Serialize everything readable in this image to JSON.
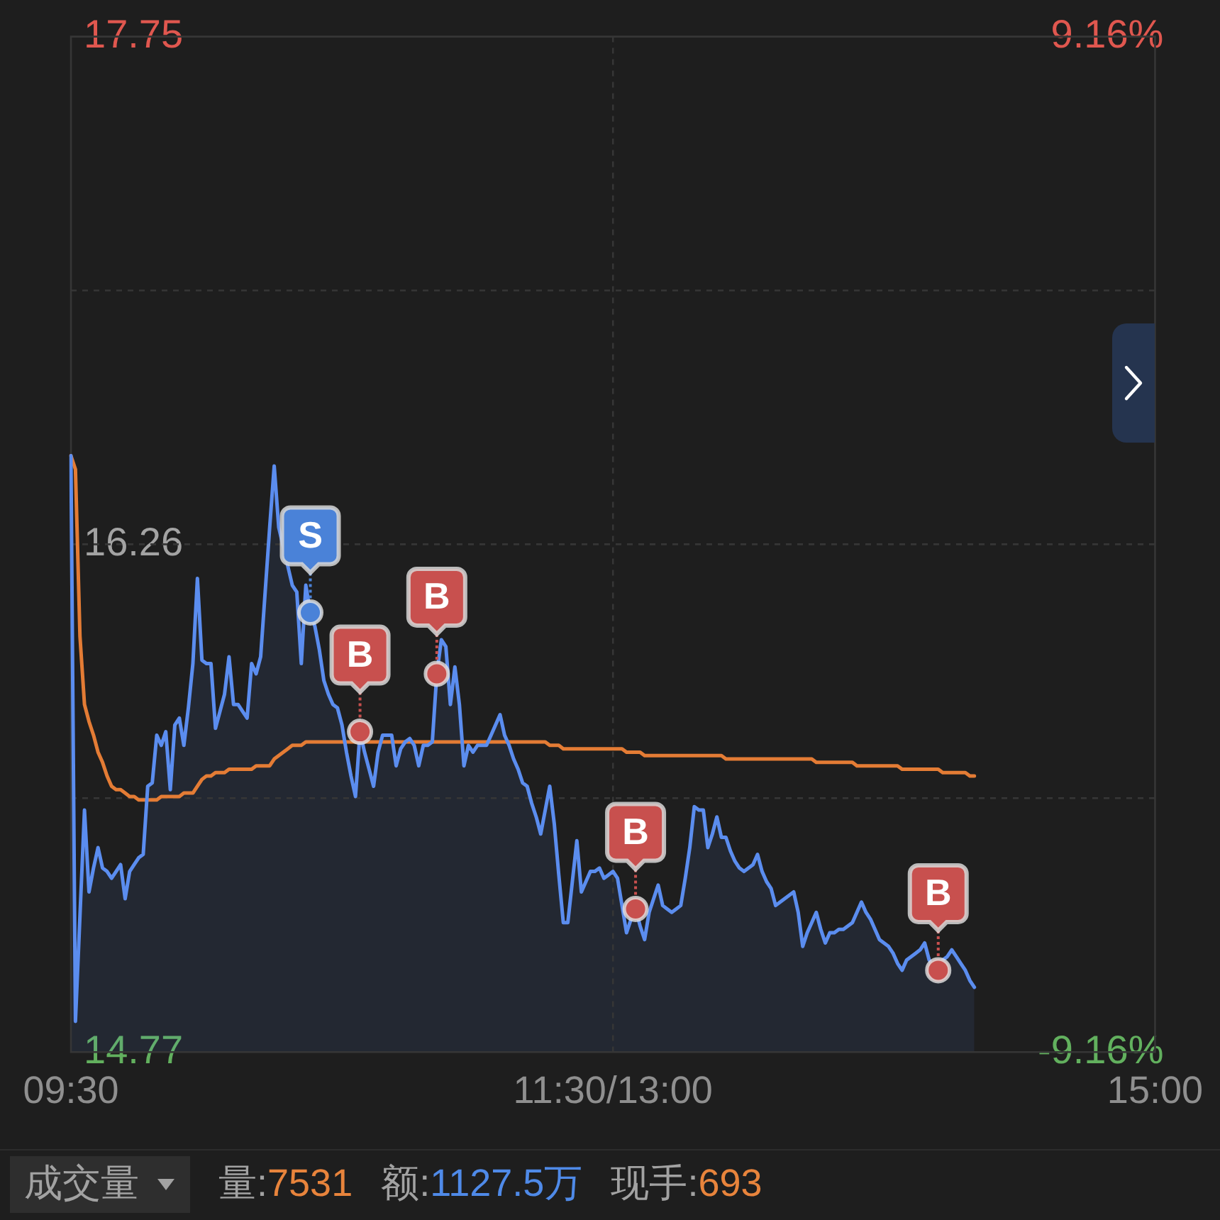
{
  "chart_data": {
    "type": "area",
    "marker": "none",
    "line_style": "solid",
    "grid": true,
    "categories": [
      "09:30",
      null,
      null,
      null,
      null,
      null,
      null,
      null,
      null,
      null,
      null,
      null,
      null,
      null,
      null,
      null,
      null,
      null,
      null,
      null,
      null,
      null,
      null,
      null,
      null,
      null,
      null,
      null,
      null,
      null,
      null,
      null,
      null,
      null,
      null,
      null,
      null,
      null,
      null,
      null,
      null,
      null,
      null,
      null,
      null,
      null,
      null,
      null,
      null,
      null,
      null,
      null,
      null,
      null,
      null,
      null,
      null,
      null,
      null,
      null,
      null,
      null,
      null,
      null,
      null,
      null,
      null,
      null,
      null,
      null,
      null,
      null,
      null,
      null,
      null,
      null,
      null,
      null,
      null,
      null,
      null,
      null,
      null,
      null,
      null,
      null,
      null,
      null,
      null,
      null,
      null,
      null,
      null,
      null,
      null,
      null,
      null,
      null,
      null,
      null,
      null,
      null,
      null,
      null,
      null,
      null,
      null,
      null,
      null,
      null,
      null,
      null,
      null,
      null,
      null,
      null,
      null,
      null,
      null,
      null,
      "11:30/13:00",
      null,
      null,
      null,
      null,
      null,
      null,
      null,
      null,
      null,
      null,
      null,
      null,
      null,
      null,
      null,
      null,
      null,
      null,
      null,
      null,
      null,
      null,
      null,
      null,
      null,
      null,
      null,
      null,
      null,
      null,
      null,
      null,
      null,
      null,
      null,
      null,
      null,
      null,
      null,
      null,
      null,
      null,
      null,
      null,
      null,
      null,
      null,
      null,
      null,
      null,
      null,
      null,
      null,
      null,
      null,
      null,
      null,
      null,
      null,
      null,
      null,
      null,
      null,
      null,
      null,
      null,
      null,
      null,
      null,
      null,
      null,
      null,
      null,
      null,
      null,
      null,
      null,
      null,
      null,
      null,
      null,
      null,
      null,
      null,
      null,
      null,
      null,
      null,
      null,
      null,
      null,
      null,
      null,
      null,
      null,
      null,
      null,
      null,
      null,
      null,
      null,
      null,
      null,
      null,
      null,
      null,
      null,
      null,
      null,
      null,
      null,
      null,
      null,
      null,
      null,
      null,
      null,
      null,
      null,
      "15:00"
    ],
    "ylim": [
      14.77,
      17.75
    ],
    "yticks": [
      14.77,
      {
        "value": 15.515,
        "label": null
      },
      16.26,
      {
        "value": 17.005,
        "label": null
      },
      17.75
    ],
    "y2lim": [
      -9.16,
      9.16
    ],
    "y2ticks": [
      {
        "value": -9.16,
        "label": "-9.16%"
      },
      {
        "value": 9.16,
        "label": "9.16%"
      }
    ],
    "annotations": [
      "成交量",
      "量:7531",
      "额:1127.5万",
      "现手:693"
    ],
    "series": [
      {
        "color": "#5b8def",
        "values": [
          16.52,
          14.86,
          15.17,
          15.48,
          15.24,
          15.31,
          15.37,
          15.31,
          15.3,
          15.28,
          15.3,
          15.32,
          15.22,
          15.3,
          15.32,
          15.34,
          15.35,
          15.55,
          15.56,
          15.7,
          15.67,
          15.71,
          15.54,
          15.73,
          15.75,
          15.67,
          15.78,
          15.91,
          16.16,
          15.92,
          15.91,
          15.91,
          15.72,
          15.77,
          15.82,
          15.93,
          15.79,
          15.79,
          15.77,
          15.75,
          15.91,
          15.88,
          15.93,
          16.12,
          16.31,
          16.49,
          16.31,
          null,
          null,
          16.14,
          16.12,
          15.91,
          16.14,
          16.06,
          16.02,
          15.95,
          15.86,
          15.82,
          15.79,
          15.78,
          15.73,
          15.65,
          15.58,
          15.52,
          15.71,
          15.65,
          15.6,
          15.55,
          15.65,
          15.7,
          15.7,
          15.7,
          15.61,
          15.66,
          15.68,
          15.69,
          15.67,
          15.61,
          15.67,
          15.67,
          15.68,
          15.88,
          15.98,
          15.96,
          15.79,
          15.9,
          15.79,
          15.61,
          15.67,
          15.65,
          15.67,
          15.67,
          15.67,
          15.7,
          15.73,
          15.76,
          15.7,
          15.67,
          15.63,
          15.6,
          15.56,
          15.55,
          15.5,
          15.46,
          15.41,
          15.48,
          15.55,
          15.44,
          15.29,
          15.15,
          15.15,
          15.27,
          15.39,
          15.24,
          15.27,
          15.3,
          15.3,
          15.31,
          15.28,
          15.29,
          15.3,
          15.28,
          15.2,
          15.12,
          15.16,
          15.19,
          15.14,
          15.1,
          15.18,
          15.22,
          15.26,
          15.2,
          15.19,
          15.18,
          15.19,
          15.2,
          15.28,
          15.37,
          15.49,
          15.48,
          15.48,
          15.37,
          15.41,
          15.46,
          15.4,
          15.4,
          15.36,
          15.33,
          15.31,
          15.3,
          15.31,
          15.32,
          15.35,
          15.3,
          15.27,
          15.25,
          15.2,
          15.21,
          15.22,
          15.23,
          15.24,
          15.18,
          15.08,
          15.12,
          15.15,
          15.18,
          15.13,
          15.09,
          15.12,
          15.12,
          15.13,
          15.13,
          15.14,
          15.15,
          15.18,
          15.21,
          15.18,
          15.16,
          15.13,
          15.1,
          15.09,
          15.08,
          15.06,
          15.03,
          15.01,
          15.04,
          15.05,
          15.06,
          15.07,
          15.09,
          15.04,
          15.02,
          15.01,
          15.04,
          15.05,
          15.07,
          15.05,
          15.03,
          15.01,
          14.98,
          14.96,
          null,
          null,
          null,
          null,
          null,
          null,
          null,
          null,
          null,
          null,
          null,
          null,
          null,
          null,
          null,
          null,
          null,
          null,
          null,
          null,
          null,
          null,
          null,
          null,
          null,
          null,
          null,
          null,
          null,
          null,
          null,
          null,
          null,
          null,
          null,
          null,
          null,
          null,
          null,
          null
        ]
      },
      {
        "type": "line",
        "color": "#e47c35",
        "values": [
          16.52,
          16.48,
          15.99,
          15.79,
          15.74,
          15.7,
          15.65,
          15.62,
          15.58,
          15.55,
          15.54,
          15.54,
          15.53,
          15.52,
          15.52,
          15.51,
          15.51,
          15.51,
          15.51,
          15.51,
          15.52,
          15.52,
          15.52,
          15.52,
          15.52,
          15.53,
          15.53,
          15.53,
          15.55,
          15.57,
          15.58,
          15.58,
          15.59,
          15.59,
          15.59,
          15.6,
          15.6,
          15.6,
          15.6,
          15.6,
          15.6,
          15.61,
          15.61,
          15.61,
          15.61,
          15.63,
          15.64,
          15.65,
          15.66,
          15.67,
          15.67,
          15.67,
          15.68,
          15.68,
          15.68,
          15.68,
          15.68,
          15.68,
          15.68,
          15.68,
          15.68,
          15.68,
          15.68,
          15.68,
          15.68,
          15.68,
          15.68,
          15.68,
          15.68,
          15.68,
          15.68,
          15.68,
          15.68,
          15.68,
          15.68,
          15.68,
          15.68,
          15.68,
          15.68,
          15.68,
          15.68,
          15.68,
          15.68,
          15.68,
          15.68,
          15.68,
          15.68,
          15.68,
          15.68,
          15.68,
          15.68,
          15.68,
          15.68,
          15.68,
          15.68,
          15.68,
          15.68,
          15.68,
          15.68,
          15.68,
          15.68,
          15.68,
          15.68,
          15.68,
          15.68,
          15.68,
          15.67,
          15.67,
          15.67,
          15.66,
          15.66,
          15.66,
          15.66,
          15.66,
          15.66,
          15.66,
          15.66,
          15.66,
          15.66,
          15.66,
          15.66,
          15.66,
          15.66,
          15.65,
          15.65,
          15.65,
          15.65,
          15.64,
          15.64,
          15.64,
          15.64,
          15.64,
          15.64,
          15.64,
          15.64,
          15.64,
          15.64,
          15.64,
          15.64,
          15.64,
          15.64,
          15.64,
          15.64,
          15.64,
          15.64,
          15.63,
          15.63,
          15.63,
          15.63,
          15.63,
          15.63,
          15.63,
          15.63,
          15.63,
          15.63,
          15.63,
          15.63,
          15.63,
          15.63,
          15.63,
          15.63,
          15.63,
          15.63,
          15.63,
          15.63,
          15.62,
          15.62,
          15.62,
          15.62,
          15.62,
          15.62,
          15.62,
          15.62,
          15.62,
          15.61,
          15.61,
          15.61,
          15.61,
          15.61,
          15.61,
          15.61,
          15.61,
          15.61,
          15.61,
          15.6,
          15.6,
          15.6,
          15.6,
          15.6,
          15.6,
          15.6,
          15.6,
          15.6,
          15.59,
          15.59,
          15.59,
          15.59,
          15.59,
          15.59,
          15.58,
          15.58,
          null,
          null,
          null,
          null,
          null,
          null,
          null,
          null,
          null,
          null,
          null,
          null,
          null,
          null,
          null,
          null,
          null,
          null,
          null,
          null,
          null,
          null,
          null,
          null,
          null,
          null,
          null,
          null,
          null,
          null,
          null,
          null,
          null,
          null,
          null,
          null,
          null,
          null,
          null,
          null
        ]
      },
      {
        "type": "scatter",
        "marker": "circle",
        "color": "#4a82d8",
        "values": [
          null,
          null,
          null,
          null,
          null,
          null,
          null,
          null,
          null,
          null,
          null,
          null,
          null,
          null,
          null,
          null,
          null,
          null,
          null,
          null,
          null,
          null,
          null,
          null,
          null,
          null,
          null,
          null,
          null,
          null,
          null,
          null,
          null,
          null,
          null,
          null,
          null,
          null,
          null,
          null,
          null,
          null,
          null,
          null,
          null,
          null,
          null,
          null,
          null,
          null,
          null,
          null,
          null,
          16.06,
          null,
          null,
          null,
          null,
          null,
          null,
          null,
          null,
          null,
          null,
          null,
          null,
          null,
          null,
          null,
          null,
          null,
          null,
          null,
          null,
          null,
          null,
          null,
          null,
          null,
          null,
          null,
          null,
          null,
          null,
          null,
          null,
          null,
          null,
          null,
          null,
          null,
          null,
          null,
          null,
          null,
          null,
          null,
          null,
          null,
          null,
          null,
          null,
          null,
          null,
          null,
          null,
          null,
          null,
          null,
          null,
          null,
          null,
          null,
          null,
          null,
          null,
          null,
          null,
          null,
          null,
          null,
          null,
          null,
          null,
          null,
          null,
          null,
          null,
          null,
          null,
          null,
          null,
          null,
          null,
          null,
          null,
          null,
          null,
          null,
          null,
          null,
          null,
          null,
          null,
          null,
          null,
          null,
          null,
          null,
          null,
          null,
          null,
          null,
          null,
          null,
          null,
          null,
          null,
          null,
          null,
          null,
          null,
          null,
          null,
          null,
          null,
          null,
          null,
          null,
          null,
          null,
          null,
          null,
          null,
          null,
          null,
          null,
          null,
          null,
          null,
          null,
          null,
          null,
          null,
          null,
          null,
          null,
          null,
          null,
          null,
          null,
          null,
          null,
          null,
          null,
          null,
          null,
          null,
          null,
          null,
          null,
          null,
          null,
          null,
          null,
          null,
          null,
          null,
          null,
          null,
          null,
          null,
          null,
          null,
          null,
          null,
          null,
          null,
          null,
          null,
          null,
          null,
          null,
          null,
          null,
          null,
          null,
          null,
          null,
          null,
          null,
          null,
          null,
          null,
          null,
          null,
          null,
          null,
          null,
          null,
          null
        ],
        "value_labels": [
          null,
          null,
          null,
          null,
          null,
          null,
          null,
          null,
          null,
          null,
          null,
          null,
          null,
          null,
          null,
          null,
          null,
          null,
          null,
          null,
          null,
          null,
          null,
          null,
          null,
          null,
          null,
          null,
          null,
          null,
          null,
          null,
          null,
          null,
          null,
          null,
          null,
          null,
          null,
          null,
          null,
          null,
          null,
          null,
          null,
          null,
          null,
          null,
          null,
          null,
          null,
          null,
          null,
          "S",
          null,
          null,
          null,
          null,
          null,
          null,
          null,
          null,
          null,
          null,
          null,
          null,
          null,
          null,
          null,
          null,
          null,
          null,
          null,
          null,
          null,
          null,
          null,
          null,
          null,
          null,
          null,
          null,
          null,
          null,
          null,
          null,
          null,
          null,
          null,
          null,
          null,
          null,
          null,
          null,
          null,
          null,
          null,
          null,
          null,
          null,
          null,
          null,
          null,
          null,
          null,
          null,
          null,
          null,
          null,
          null,
          null,
          null,
          null,
          null,
          null,
          null,
          null,
          null,
          null,
          null,
          null,
          null,
          null,
          null,
          null,
          null,
          null,
          null,
          null,
          null,
          null,
          null,
          null,
          null,
          null,
          null,
          null,
          null,
          null,
          null,
          null,
          null,
          null,
          null,
          null,
          null,
          null,
          null,
          null,
          null,
          null,
          null,
          null,
          null,
          null,
          null,
          null,
          null,
          null,
          null,
          null,
          null,
          null,
          null,
          null,
          null,
          null,
          null,
          null,
          null,
          null,
          null,
          null,
          null,
          null,
          null,
          null,
          null,
          null,
          null,
          null,
          null,
          null,
          null,
          null,
          null,
          null,
          null,
          null,
          null,
          null,
          null,
          null,
          null,
          null,
          null,
          null,
          null,
          null,
          null,
          null,
          null,
          null,
          null,
          null,
          null,
          null,
          null,
          null,
          null,
          null,
          null,
          null,
          null,
          null,
          null,
          null,
          null,
          null,
          null,
          null,
          null,
          null,
          null,
          null,
          null,
          null,
          null,
          null,
          null,
          null,
          null,
          null,
          null,
          null,
          null,
          null,
          null,
          null,
          null,
          null
        ]
      },
      {
        "type": "scatter",
        "marker": "circle",
        "color": "#c8504e",
        "values": [
          null,
          null,
          null,
          null,
          null,
          null,
          null,
          null,
          null,
          null,
          null,
          null,
          null,
          null,
          null,
          null,
          null,
          null,
          null,
          null,
          null,
          null,
          null,
          null,
          null,
          null,
          null,
          null,
          null,
          null,
          null,
          null,
          null,
          null,
          null,
          null,
          null,
          null,
          null,
          null,
          null,
          null,
          null,
          null,
          null,
          null,
          null,
          null,
          null,
          null,
          null,
          null,
          null,
          null,
          null,
          null,
          null,
          null,
          null,
          null,
          null,
          null,
          null,
          null,
          15.71,
          null,
          null,
          null,
          null,
          null,
          null,
          null,
          null,
          null,
          null,
          null,
          null,
          null,
          null,
          null,
          null,
          15.88,
          null,
          null,
          null,
          null,
          null,
          null,
          null,
          null,
          null,
          null,
          null,
          null,
          null,
          null,
          null,
          null,
          null,
          null,
          null,
          null,
          null,
          null,
          null,
          null,
          null,
          null,
          null,
          null,
          null,
          null,
          null,
          null,
          null,
          null,
          null,
          null,
          null,
          null,
          null,
          null,
          null,
          null,
          null,
          15.19,
          null,
          null,
          null,
          null,
          null,
          null,
          null,
          null,
          null,
          null,
          null,
          null,
          null,
          null,
          null,
          null,
          null,
          null,
          null,
          null,
          null,
          null,
          null,
          null,
          null,
          null,
          null,
          null,
          null,
          null,
          null,
          null,
          null,
          null,
          null,
          null,
          null,
          null,
          null,
          null,
          null,
          null,
          null,
          null,
          null,
          null,
          null,
          null,
          null,
          null,
          null,
          null,
          null,
          null,
          null,
          null,
          null,
          null,
          null,
          null,
          null,
          null,
          null,
          null,
          null,
          null,
          15.01,
          null,
          null,
          null,
          null,
          null,
          null,
          null,
          null,
          null,
          null,
          null,
          null,
          null,
          null,
          null,
          null,
          null,
          null,
          null,
          null,
          null,
          null,
          null,
          null,
          null,
          null,
          null,
          null,
          null,
          null,
          null,
          null,
          null,
          null,
          null,
          null,
          null,
          null,
          null,
          null,
          null,
          null,
          null,
          null,
          null,
          null,
          null,
          null
        ],
        "value_labels": [
          null,
          null,
          null,
          null,
          null,
          null,
          null,
          null,
          null,
          null,
          null,
          null,
          null,
          null,
          null,
          null,
          null,
          null,
          null,
          null,
          null,
          null,
          null,
          null,
          null,
          null,
          null,
          null,
          null,
          null,
          null,
          null,
          null,
          null,
          null,
          null,
          null,
          null,
          null,
          null,
          null,
          null,
          null,
          null,
          null,
          null,
          null,
          null,
          null,
          null,
          null,
          null,
          null,
          null,
          null,
          null,
          null,
          null,
          null,
          null,
          null,
          null,
          null,
          null,
          "B",
          null,
          null,
          null,
          null,
          null,
          null,
          null,
          null,
          null,
          null,
          null,
          null,
          null,
          null,
          null,
          null,
          "B",
          null,
          null,
          null,
          null,
          null,
          null,
          null,
          null,
          null,
          null,
          null,
          null,
          null,
          null,
          null,
          null,
          null,
          null,
          null,
          null,
          null,
          null,
          null,
          null,
          null,
          null,
          null,
          null,
          null,
          null,
          null,
          null,
          null,
          null,
          null,
          null,
          null,
          null,
          null,
          null,
          null,
          null,
          null,
          "B",
          null,
          null,
          null,
          null,
          null,
          null,
          null,
          null,
          null,
          null,
          null,
          null,
          null,
          null,
          null,
          null,
          null,
          null,
          null,
          null,
          null,
          null,
          null,
          null,
          null,
          null,
          null,
          null,
          null,
          null,
          null,
          null,
          null,
          null,
          null,
          null,
          null,
          null,
          null,
          null,
          null,
          null,
          null,
          null,
          null,
          null,
          null,
          null,
          null,
          null,
          null,
          null,
          null,
          null,
          null,
          null,
          null,
          null,
          null,
          null,
          null,
          null,
          null,
          null,
          null,
          null,
          "B",
          null,
          null,
          null,
          null,
          null,
          null,
          null,
          null,
          null,
          null,
          null,
          null,
          null,
          null,
          null,
          null,
          null,
          null,
          null,
          null,
          null,
          null,
          null,
          null,
          null,
          null,
          null,
          null,
          null,
          null,
          null,
          null,
          null,
          null,
          null,
          null,
          null,
          null,
          null,
          null,
          null,
          null,
          null,
          null,
          null,
          null,
          null,
          null
        ]
      }
    ]
  }
}
